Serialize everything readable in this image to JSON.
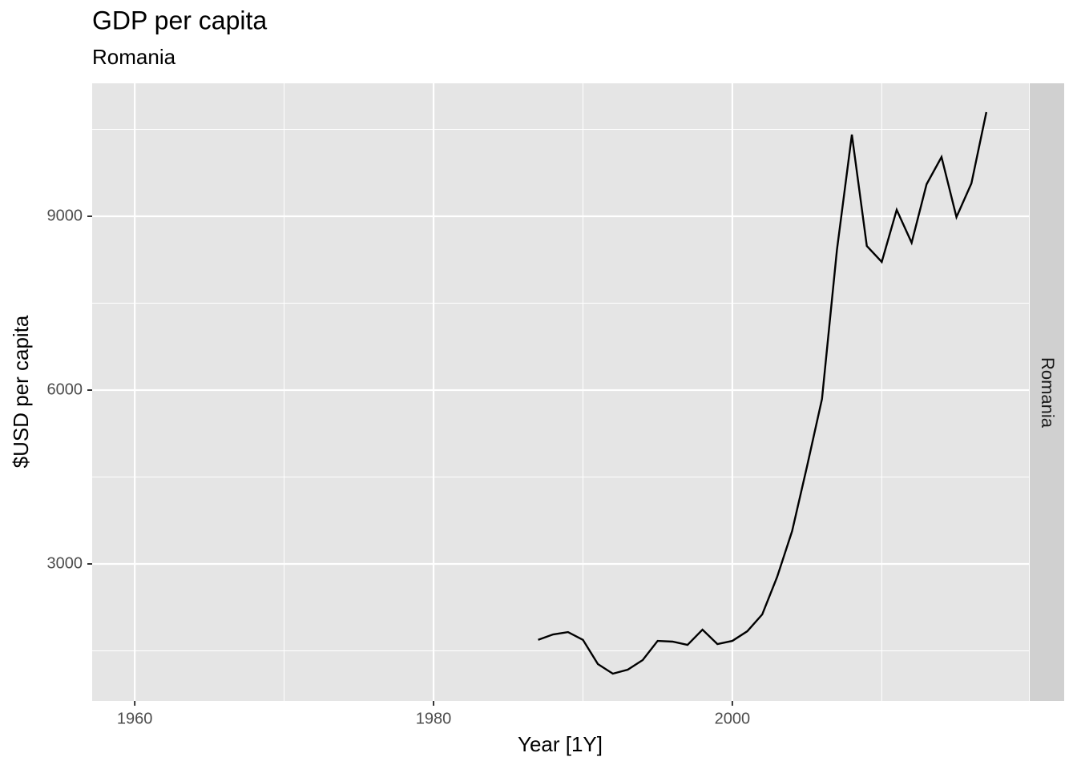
{
  "chart_data": {
    "type": "line",
    "title": "GDP per capita",
    "subtitle": "Romania",
    "x_label": "Year [1Y]",
    "y_label": "$USD per capita",
    "facet_label": "Romania",
    "x": [
      1987,
      1988,
      1989,
      1990,
      1991,
      1992,
      1993,
      1994,
      1995,
      1996,
      1997,
      1998,
      1999,
      2000,
      2001,
      2002,
      2003,
      2004,
      2005,
      2006,
      2007,
      2008,
      2009,
      2010,
      2011,
      2012,
      2013,
      2014,
      2015,
      2016,
      2017
    ],
    "series": [
      {
        "name": "Romania",
        "color": "#000000",
        "values": [
          1690,
          1783,
          1824,
          1690,
          1272,
          1106,
          1175,
          1341,
          1672,
          1659,
          1603,
          1866,
          1617,
          1672,
          1838,
          2129,
          2778,
          3567,
          4686,
          5848,
          8419,
          10410,
          8488,
          8212,
          9111,
          8544,
          9553,
          10023,
          8986,
          9567,
          10797
        ]
      }
    ],
    "xlim": [
      1957.15,
      2019.85
    ],
    "xticks": [
      1960,
      1980,
      2000
    ],
    "x_minor_breaks": [
      1970,
      1990,
      2010
    ],
    "ylim": [
      636,
      11295
    ],
    "yticks": [
      3000,
      6000,
      9000
    ],
    "y_minor_breaks": [
      1500,
      4500,
      7500,
      10500
    ],
    "grid": true
  }
}
